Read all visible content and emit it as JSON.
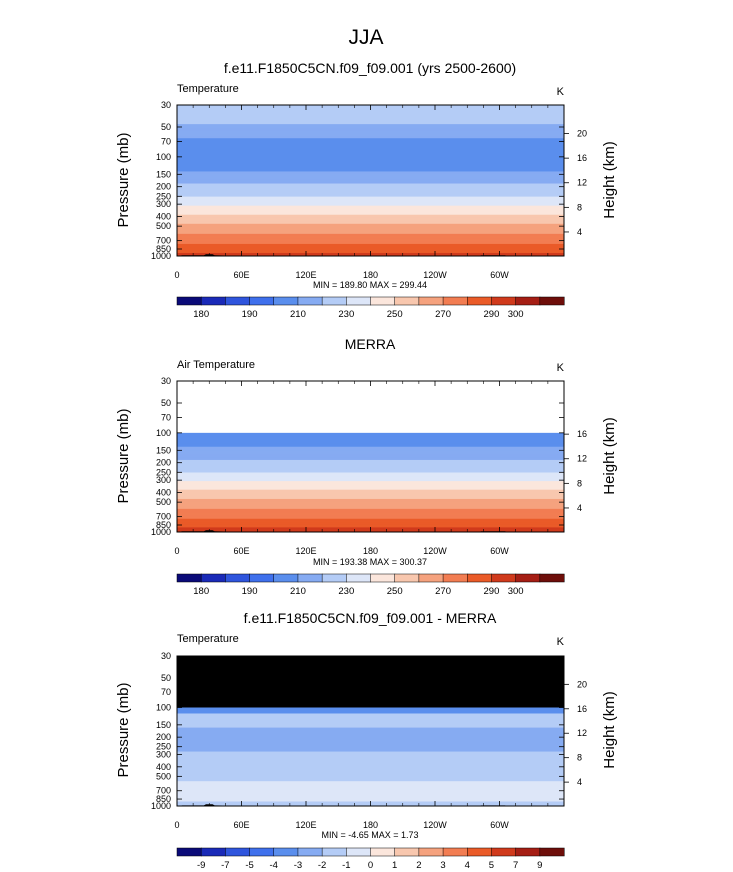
{
  "figure": {
    "title": "JJA",
    "colors": {
      "background": "#ffffff",
      "masked": "#000000",
      "missing_top": "#ffffff"
    }
  },
  "chart_data": [
    {
      "type": "heatmap",
      "subtitle": "f.e11.F1850C5CN.f09_f09.001 (yrs 2500-2600)",
      "left_label": "Temperature",
      "right_label": "K",
      "ylabel": "Pressure (mb)",
      "y2label": "Height (km)",
      "xticks": [
        "0",
        "60E",
        "120E",
        "180",
        "120W",
        "60W"
      ],
      "x_values": [
        0,
        60,
        120,
        180,
        240,
        300
      ],
      "xlim": [
        0,
        360
      ],
      "yticks": [
        30,
        50,
        70,
        100,
        150,
        200,
        250,
        300,
        400,
        500,
        700,
        850,
        1000
      ],
      "ylim": [
        30,
        1000
      ],
      "y_scale": "log",
      "y2ticks": [
        20,
        16,
        12,
        8,
        4
      ],
      "stats": "MIN = 189.80  MAX = 299.44",
      "min": 189.8,
      "max": 299.44,
      "data_top_hPa": 30,
      "colorbar_labels": [
        "180",
        "190",
        "210",
        "230",
        "250",
        "270",
        "290",
        "300"
      ],
      "colorbar_levels": [
        180,
        185,
        190,
        200,
        210,
        220,
        230,
        240,
        250,
        260,
        270,
        280,
        290,
        295,
        300
      ],
      "profile": [
        {
          "p": 30,
          "v": 225
        },
        {
          "p": 45,
          "v": 221
        },
        {
          "p": 60,
          "v": 214
        },
        {
          "p": 70,
          "v": 207
        },
        {
          "p": 85,
          "v": 203
        },
        {
          "p": 100,
          "v": 203
        },
        {
          "p": 130,
          "v": 207
        },
        {
          "p": 150,
          "v": 213
        },
        {
          "p": 200,
          "v": 222
        },
        {
          "p": 250,
          "v": 230
        },
        {
          "p": 300,
          "v": 238
        },
        {
          "p": 400,
          "v": 252
        },
        {
          "p": 500,
          "v": 262
        },
        {
          "p": 600,
          "v": 270
        },
        {
          "p": 700,
          "v": 277
        },
        {
          "p": 850,
          "v": 286
        },
        {
          "p": 1000,
          "v": 293
        }
      ]
    },
    {
      "type": "heatmap",
      "subtitle": "MERRA",
      "left_label": "Air Temperature",
      "right_label": "K",
      "ylabel": "Pressure (mb)",
      "y2label": "Height (km)",
      "xticks": [
        "0",
        "60E",
        "120E",
        "180",
        "120W",
        "60W"
      ],
      "x_values": [
        0,
        60,
        120,
        180,
        240,
        300
      ],
      "xlim": [
        0,
        360
      ],
      "yticks": [
        30,
        50,
        70,
        100,
        150,
        200,
        250,
        300,
        400,
        500,
        700,
        850,
        1000
      ],
      "ylim": [
        30,
        1000
      ],
      "y_scale": "log",
      "y2ticks": [
        16,
        12,
        8,
        4
      ],
      "stats": "MIN = 193.38  MAX = 300.37",
      "min": 193.38,
      "max": 300.37,
      "data_top_hPa": 100,
      "colorbar_labels": [
        "180",
        "190",
        "210",
        "230",
        "250",
        "270",
        "290",
        "300"
      ],
      "colorbar_levels": [
        180,
        185,
        190,
        200,
        210,
        220,
        230,
        240,
        250,
        260,
        270,
        280,
        290,
        295,
        300
      ],
      "profile": [
        {
          "p": 100,
          "v": 203
        },
        {
          "p": 130,
          "v": 208
        },
        {
          "p": 150,
          "v": 213
        },
        {
          "p": 200,
          "v": 222
        },
        {
          "p": 250,
          "v": 230
        },
        {
          "p": 300,
          "v": 239
        },
        {
          "p": 400,
          "v": 253
        },
        {
          "p": 500,
          "v": 263
        },
        {
          "p": 600,
          "v": 271
        },
        {
          "p": 700,
          "v": 278
        },
        {
          "p": 850,
          "v": 287
        },
        {
          "p": 1000,
          "v": 295
        }
      ]
    },
    {
      "type": "heatmap",
      "subtitle": "f.e11.F1850C5CN.f09_f09.001 - MERRA",
      "left_label": "Temperature",
      "right_label": "K",
      "ylabel": "Pressure (mb)",
      "y2label": "Height (km)",
      "xticks": [
        "0",
        "60E",
        "120E",
        "180",
        "120W",
        "60W"
      ],
      "x_values": [
        0,
        60,
        120,
        180,
        240,
        300
      ],
      "xlim": [
        0,
        360
      ],
      "yticks": [
        30,
        50,
        70,
        100,
        150,
        200,
        250,
        300,
        400,
        500,
        700,
        850,
        1000
      ],
      "ylim": [
        30,
        1000
      ],
      "y_scale": "log",
      "y2ticks": [
        20,
        16,
        12,
        8,
        4
      ],
      "stats": "MIN = -4.65  MAX =  1.73",
      "min": -4.65,
      "max": 1.73,
      "data_top_hPa": 100,
      "masked_above_hPa": 100,
      "colorbar_labels": [
        "-9",
        "-7",
        "-5",
        "-4",
        "-3",
        "-2",
        "-1",
        "0",
        "1",
        "2",
        "3",
        "4",
        "5",
        "7",
        "9"
      ],
      "colorbar_levels": [
        -9,
        -7,
        -5,
        -4,
        -3,
        -2,
        -1,
        0,
        1,
        2,
        3,
        4,
        5,
        7,
        9
      ],
      "bands": [
        {
          "p_top": 100,
          "p_bot": 115,
          "v": -3.5
        },
        {
          "p_top": 115,
          "p_bot": 160,
          "v": -1.5
        },
        {
          "p_top": 160,
          "p_bot": 280,
          "v": -2.5
        },
        {
          "p_top": 280,
          "p_bot": 560,
          "v": -1.5
        },
        {
          "p_top": 560,
          "p_bot": 900,
          "v": -0.5
        },
        {
          "p_top": 900,
          "p_bot": 1000,
          "v": -1.5
        }
      ]
    }
  ],
  "colorbar_colors": [
    "#0a0a78",
    "#1a2ab8",
    "#2f55dd",
    "#3f70ec",
    "#5a8eed",
    "#86abf2",
    "#b4ccf6",
    "#dde6f8",
    "#fbe6dc",
    "#f8c7ae",
    "#f5a27e",
    "#f27d52",
    "#ea5b28",
    "#d03a1c",
    "#a51e14",
    "#6e0e0a"
  ],
  "diff_colors": [
    "#0a0a78",
    "#1a2ab8",
    "#2f55dd",
    "#3f70ec",
    "#5a8eed",
    "#86abf2",
    "#b4ccf6",
    "#dde6f8",
    "#fbe6dc",
    "#f8c7ae",
    "#f5a27e",
    "#f27d52",
    "#ea5b28",
    "#d03a1c",
    "#a51e14",
    "#6e0e0a"
  ],
  "topography_hPa_by_lon": [
    {
      "lon": 0,
      "p": 1000
    },
    {
      "lon": 5,
      "p": 985
    },
    {
      "lon": 25,
      "p": 985
    },
    {
      "lon": 27,
      "p": 960
    },
    {
      "lon": 33,
      "p": 960
    },
    {
      "lon": 35,
      "p": 985
    },
    {
      "lon": 50,
      "p": 990
    },
    {
      "lon": 60,
      "p": 1000
    },
    {
      "lon": 280,
      "p": 1000
    },
    {
      "lon": 283,
      "p": 985
    },
    {
      "lon": 305,
      "p": 985
    },
    {
      "lon": 308,
      "p": 1000
    },
    {
      "lon": 360,
      "p": 1000
    }
  ]
}
